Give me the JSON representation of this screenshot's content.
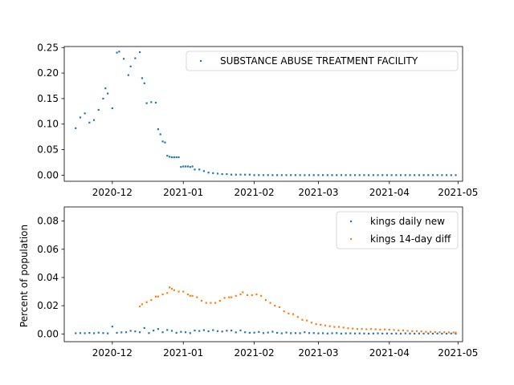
{
  "chart_data": [
    {
      "type": "scatter",
      "title": "",
      "xlabel": "",
      "ylabel": "",
      "x_ticks": [
        "2020-12",
        "2021-01",
        "2021-02",
        "2021-03",
        "2021-04",
        "2021-05"
      ],
      "y_ticks": [
        "0.00",
        "0.05",
        "0.10",
        "0.15",
        "0.20",
        "0.25"
      ],
      "xlim": [
        "2020-11-10",
        "2021-05-03"
      ],
      "ylim": [
        -0.012,
        0.252
      ],
      "legend_position": "upper right",
      "series": [
        {
          "name": "SUBSTANCE ABUSE TREATMENT FACILITY",
          "color": "#1f77b4",
          "x": [
            "2020-11-15",
            "2020-11-17",
            "2020-11-19",
            "2020-11-21",
            "2020-11-23",
            "2020-11-25",
            "2020-11-27",
            "2020-11-28",
            "2020-11-29",
            "2020-12-01",
            "2020-12-03",
            "2020-12-04",
            "2020-12-06",
            "2020-12-08",
            "2020-12-09",
            "2020-12-11",
            "2020-12-13",
            "2020-12-14",
            "2020-12-15",
            "2020-12-16",
            "2020-12-18",
            "2020-12-20",
            "2020-12-21",
            "2020-12-22",
            "2020-12-23",
            "2020-12-24",
            "2020-12-25",
            "2020-12-26",
            "2020-12-27",
            "2020-12-28",
            "2020-12-29",
            "2020-12-30",
            "2020-12-31",
            "2021-01-01",
            "2021-01-02",
            "2021-01-03",
            "2021-01-04",
            "2021-01-05",
            "2021-01-06",
            "2021-01-08",
            "2021-01-10",
            "2021-01-12",
            "2021-01-14",
            "2021-01-16",
            "2021-01-18",
            "2021-01-20",
            "2021-01-22",
            "2021-01-24",
            "2021-01-26",
            "2021-01-28",
            "2021-01-30",
            "2021-02-01",
            "2021-02-03",
            "2021-02-05",
            "2021-02-07",
            "2021-02-09",
            "2021-02-11",
            "2021-02-13",
            "2021-02-15",
            "2021-02-17",
            "2021-02-19",
            "2021-02-21",
            "2021-02-23",
            "2021-02-25",
            "2021-02-27",
            "2021-03-01",
            "2021-03-03",
            "2021-03-05",
            "2021-03-07",
            "2021-03-09",
            "2021-03-11",
            "2021-03-13",
            "2021-03-15",
            "2021-03-17",
            "2021-03-19",
            "2021-03-21",
            "2021-03-23",
            "2021-03-25",
            "2021-03-27",
            "2021-03-29",
            "2021-03-31",
            "2021-04-02",
            "2021-04-04",
            "2021-04-06",
            "2021-04-08",
            "2021-04-10",
            "2021-04-12",
            "2021-04-14",
            "2021-04-16",
            "2021-04-18",
            "2021-04-20",
            "2021-04-22",
            "2021-04-24",
            "2021-04-26",
            "2021-04-28",
            "2021-04-30"
          ],
          "y": [
            0.092,
            0.113,
            0.121,
            0.103,
            0.108,
            0.128,
            0.15,
            0.17,
            0.16,
            0.131,
            0.24,
            0.242,
            0.228,
            0.196,
            0.213,
            0.229,
            0.241,
            0.19,
            0.18,
            0.141,
            0.143,
            0.142,
            0.09,
            0.08,
            0.066,
            0.064,
            0.038,
            0.036,
            0.035,
            0.035,
            0.035,
            0.035,
            0.016,
            0.017,
            0.017,
            0.017,
            0.016,
            0.017,
            0.011,
            0.011,
            0.008,
            0.005,
            0.004,
            0.003,
            0.002,
            0.002,
            0.001,
            0.001,
            0.001,
            0.001,
            0.001,
            0.0,
            0.0,
            0.0,
            0.0,
            0.0,
            0.0,
            0.0,
            0.0,
            0.0,
            0.0,
            0.0,
            0.0,
            0.0,
            0.0,
            0.0,
            0.0,
            0.0,
            0.0,
            0.0,
            0.0,
            0.0,
            0.0,
            0.0,
            0.0,
            0.0,
            0.0,
            0.0,
            0.0,
            0.0,
            0.0,
            0.0,
            0.0,
            0.0,
            0.0,
            0.0,
            0.0,
            0.0,
            0.0,
            0.0,
            0.0,
            0.0,
            0.0,
            0.0,
            0.0,
            0.0
          ]
        }
      ]
    },
    {
      "type": "scatter",
      "title": "",
      "xlabel": "",
      "ylabel": "Percent of population",
      "x_ticks": [
        "2020-12",
        "2021-01",
        "2021-02",
        "2021-03",
        "2021-04",
        "2021-05"
      ],
      "y_ticks": [
        "0.00",
        "0.02",
        "0.04",
        "0.06",
        "0.08"
      ],
      "xlim": [
        "2020-11-10",
        "2021-05-03"
      ],
      "ylim": [
        -0.0055,
        0.09
      ],
      "legend_position": "upper right",
      "series": [
        {
          "name": "kings daily new",
          "color": "#1f77b4",
          "x": [
            "2020-11-15",
            "2020-11-17",
            "2020-11-19",
            "2020-11-21",
            "2020-11-23",
            "2020-11-25",
            "2020-11-27",
            "2020-11-29",
            "2020-12-01",
            "2020-12-03",
            "2020-12-05",
            "2020-12-07",
            "2020-12-09",
            "2020-12-11",
            "2020-12-13",
            "2020-12-15",
            "2020-12-17",
            "2020-12-19",
            "2020-12-21",
            "2020-12-23",
            "2020-12-25",
            "2020-12-27",
            "2020-12-29",
            "2020-12-31",
            "2021-01-02",
            "2021-01-04",
            "2021-01-06",
            "2021-01-08",
            "2021-01-10",
            "2021-01-12",
            "2021-01-14",
            "2021-01-16",
            "2021-01-18",
            "2021-01-20",
            "2021-01-22",
            "2021-01-24",
            "2021-01-26",
            "2021-01-28",
            "2021-01-30",
            "2021-02-01",
            "2021-02-03",
            "2021-02-05",
            "2021-02-07",
            "2021-02-09",
            "2021-02-11",
            "2021-02-13",
            "2021-02-15",
            "2021-02-17",
            "2021-02-19",
            "2021-02-21",
            "2021-02-23",
            "2021-02-25",
            "2021-02-27",
            "2021-03-01",
            "2021-03-03",
            "2021-03-05",
            "2021-03-07",
            "2021-03-09",
            "2021-03-11",
            "2021-03-13",
            "2021-03-15",
            "2021-03-17",
            "2021-03-19",
            "2021-03-21",
            "2021-03-23",
            "2021-03-25",
            "2021-03-27",
            "2021-03-29",
            "2021-03-31",
            "2021-04-02",
            "2021-04-04",
            "2021-04-06",
            "2021-04-08",
            "2021-04-10",
            "2021-04-12",
            "2021-04-14",
            "2021-04-16",
            "2021-04-18",
            "2021-04-20",
            "2021-04-22",
            "2021-04-24",
            "2021-04-26",
            "2021-04-28",
            "2021-04-30"
          ],
          "y": [
            0.0005,
            0.0006,
            0.0005,
            0.0007,
            0.0005,
            0.0009,
            0.0006,
            0.0004,
            0.0052,
            0.0008,
            0.0011,
            0.0012,
            0.0022,
            0.0018,
            0.0012,
            0.0042,
            0.0006,
            0.0024,
            0.0035,
            0.0012,
            0.0028,
            0.0022,
            0.0008,
            0.0015,
            0.0012,
            0.0006,
            0.0024,
            0.0021,
            0.0027,
            0.0019,
            0.0027,
            0.002,
            0.0017,
            0.0023,
            0.0024,
            0.0011,
            0.0025,
            0.0012,
            0.0008,
            0.0009,
            0.0014,
            0.0006,
            0.001,
            0.0016,
            0.0008,
            0.0004,
            0.001,
            0.0005,
            0.0006,
            0.0005,
            0.0012,
            0.0006,
            0.0006,
            0.0004,
            0.0005,
            0.0003,
            0.0005,
            0.0006,
            0.0002,
            0.0004,
            0.0004,
            0.0003,
            0.0004,
            0.0003,
            0.0002,
            0.0003,
            0.0004,
            0.0003,
            0.0003,
            0.0002,
            0.0003,
            0.0002,
            0.0004,
            0.0003,
            0.0002,
            0.0003,
            0.0002,
            0.0003,
            0.0002,
            0.0003,
            0.0002,
            0.0002,
            0.0003,
            0.0002
          ]
        },
        {
          "name": "kings 14-day diff",
          "color": "#ff7f0e",
          "x": [
            "2020-12-13",
            "2020-12-14",
            "2020-12-16",
            "2020-12-18",
            "2020-12-20",
            "2020-12-21",
            "2020-12-23",
            "2020-12-25",
            "2020-12-26",
            "2020-12-27",
            "2020-12-28",
            "2020-12-30",
            "2021-01-01",
            "2021-01-03",
            "2021-01-04",
            "2021-01-05",
            "2021-01-07",
            "2021-01-09",
            "2021-01-11",
            "2021-01-13",
            "2021-01-15",
            "2021-01-17",
            "2021-01-19",
            "2021-01-21",
            "2021-01-22",
            "2021-01-24",
            "2021-01-26",
            "2021-01-27",
            "2021-01-29",
            "2021-01-31",
            "2021-02-02",
            "2021-02-04",
            "2021-02-06",
            "2021-02-08",
            "2021-02-10",
            "2021-02-12",
            "2021-02-14",
            "2021-02-16",
            "2021-02-18",
            "2021-02-20",
            "2021-02-22",
            "2021-02-24",
            "2021-02-26",
            "2021-02-28",
            "2021-03-02",
            "2021-03-04",
            "2021-03-06",
            "2021-03-08",
            "2021-03-10",
            "2021-03-12",
            "2021-03-14",
            "2021-03-16",
            "2021-03-18",
            "2021-03-20",
            "2021-03-22",
            "2021-03-24",
            "2021-03-26",
            "2021-03-28",
            "2021-03-30",
            "2021-04-01",
            "2021-04-03",
            "2021-04-05",
            "2021-04-07",
            "2021-04-09",
            "2021-04-11",
            "2021-04-13",
            "2021-04-15",
            "2021-04-17",
            "2021-04-19",
            "2021-04-21",
            "2021-04-23",
            "2021-04-25",
            "2021-04-27",
            "2021-04-29",
            "2021-04-30"
          ],
          "y": [
            0.0195,
            0.021,
            0.0225,
            0.024,
            0.0265,
            0.0265,
            0.028,
            0.029,
            0.033,
            0.032,
            0.031,
            0.03,
            0.03,
            0.028,
            0.027,
            0.027,
            0.026,
            0.0235,
            0.022,
            0.022,
            0.022,
            0.0235,
            0.0255,
            0.026,
            0.026,
            0.027,
            0.028,
            0.0295,
            0.0275,
            0.0275,
            0.028,
            0.027,
            0.024,
            0.022,
            0.02,
            0.019,
            0.016,
            0.0145,
            0.014,
            0.012,
            0.01,
            0.0095,
            0.008,
            0.007,
            0.0065,
            0.006,
            0.0055,
            0.005,
            0.005,
            0.0045,
            0.004,
            0.0038,
            0.0035,
            0.0035,
            0.0033,
            0.0035,
            0.0033,
            0.003,
            0.0032,
            0.003,
            0.0028,
            0.0025,
            0.0025,
            0.0022,
            0.002,
            0.002,
            0.0018,
            0.0015,
            0.0015,
            0.0013,
            0.0012,
            0.0012,
            0.0011,
            0.001,
            0.001
          ]
        }
      ]
    }
  ]
}
